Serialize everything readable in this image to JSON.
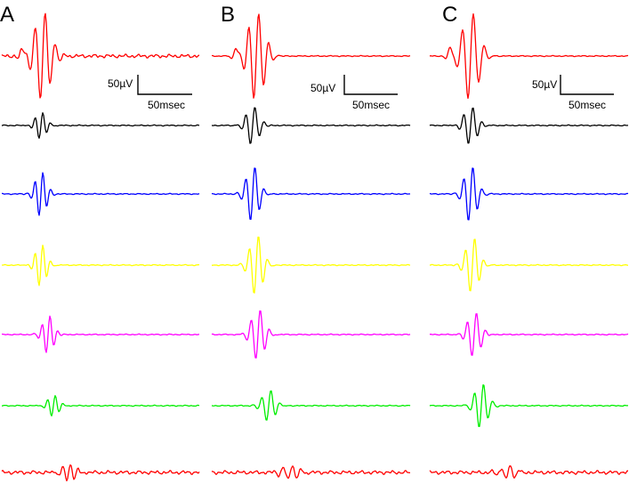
{
  "panels": [
    {
      "label": "A",
      "scale": {
        "amplitude": "50µV",
        "time": "50msec"
      }
    },
    {
      "label": "B",
      "scale": {
        "amplitude": "50µV",
        "time": "50msec"
      }
    },
    {
      "label": "C",
      "scale": {
        "amplitude": "50µV",
        "time": "50msec"
      }
    }
  ],
  "trace_colors": [
    "#ff0000",
    "#000000",
    "#0000ff",
    "#ffff00",
    "#ff00ff",
    "#00ee00",
    "#ff0000"
  ]
}
